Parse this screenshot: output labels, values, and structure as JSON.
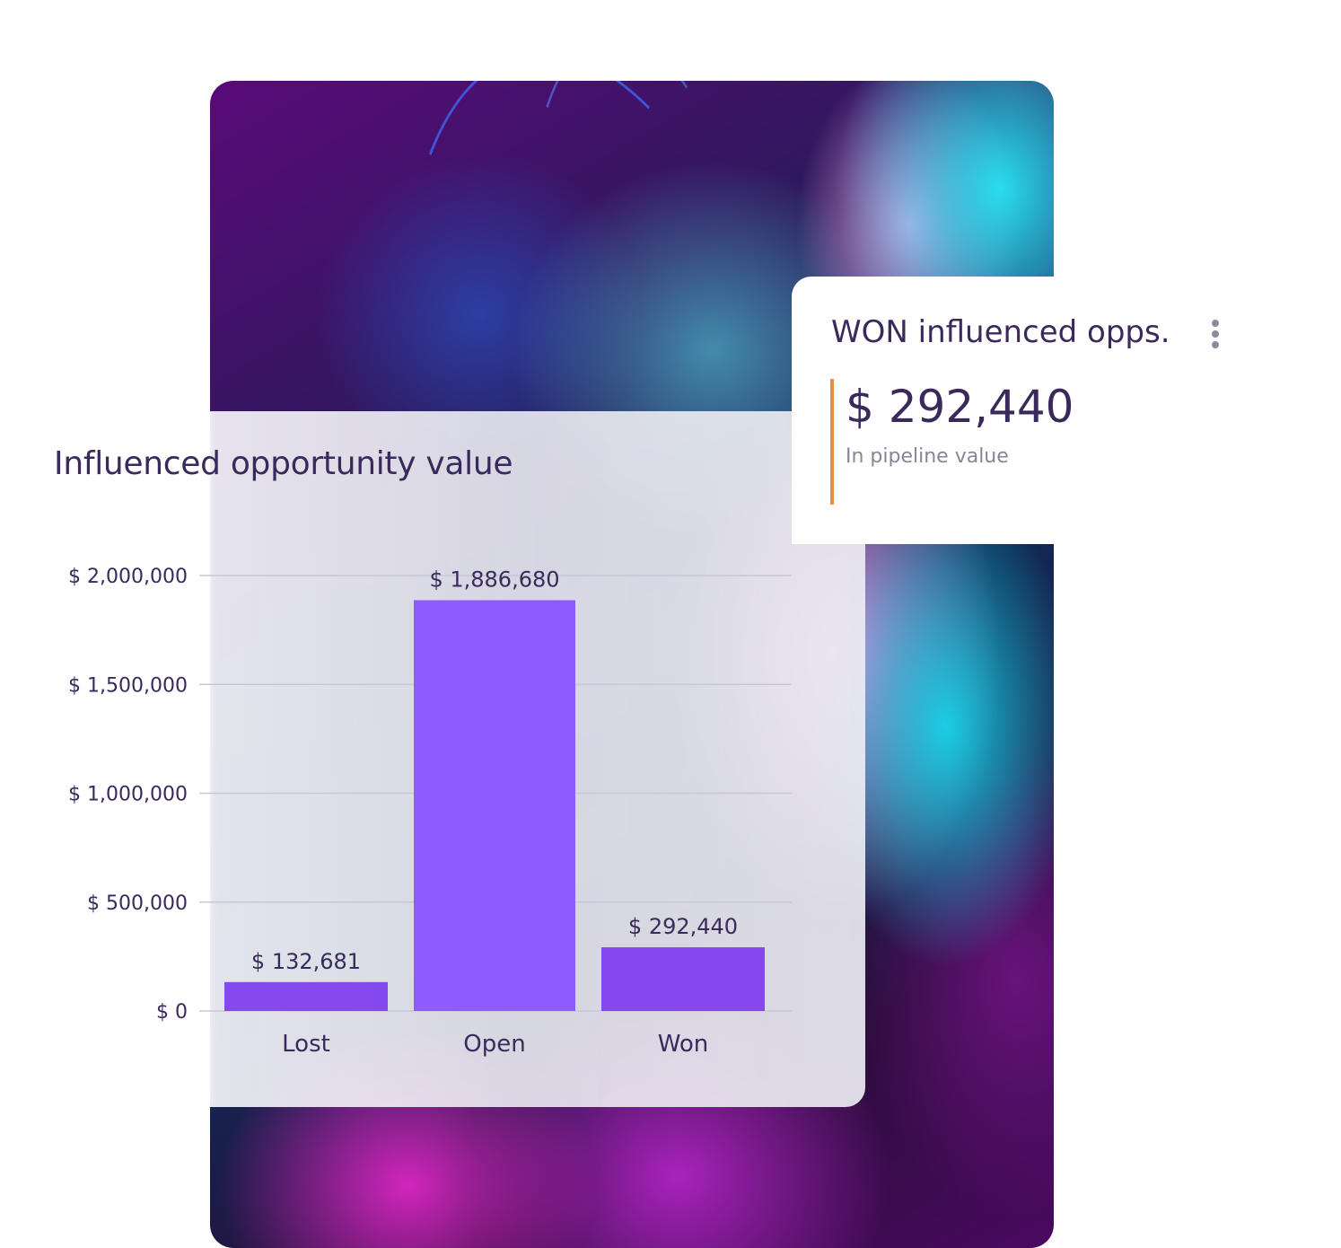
{
  "colors": {
    "bar": "#8040ee",
    "bar_highlight": "#8a55ff",
    "text_primary": "#3a2a5c",
    "text_muted": "#8a8496",
    "gridline": "#c9c6d6",
    "accent_bar": "#f08a3c"
  },
  "kpi": {
    "title": "WON influenced opps.",
    "value": "$ 292,440",
    "subtitle": "In pipeline value",
    "menu_icon": "vertical-ellipsis-icon"
  },
  "chart_data": {
    "type": "bar",
    "title": "Influenced opportunity value",
    "categories": [
      "Lost",
      "Open",
      "Won"
    ],
    "values": [
      132681,
      1886680,
      292440
    ],
    "value_labels": [
      "$ 132,681",
      "$ 1,886,680",
      "$ 292,440"
    ],
    "ylim": [
      0,
      2000000
    ],
    "yticks": [
      0,
      500000,
      1000000,
      1500000,
      2000000
    ],
    "ytick_labels": [
      "$ 0",
      "$ 500,000",
      "$ 1,000,000",
      "$ 1,500,000",
      "$ 2,000,000"
    ],
    "grid": true,
    "xlabel": "",
    "ylabel": ""
  }
}
